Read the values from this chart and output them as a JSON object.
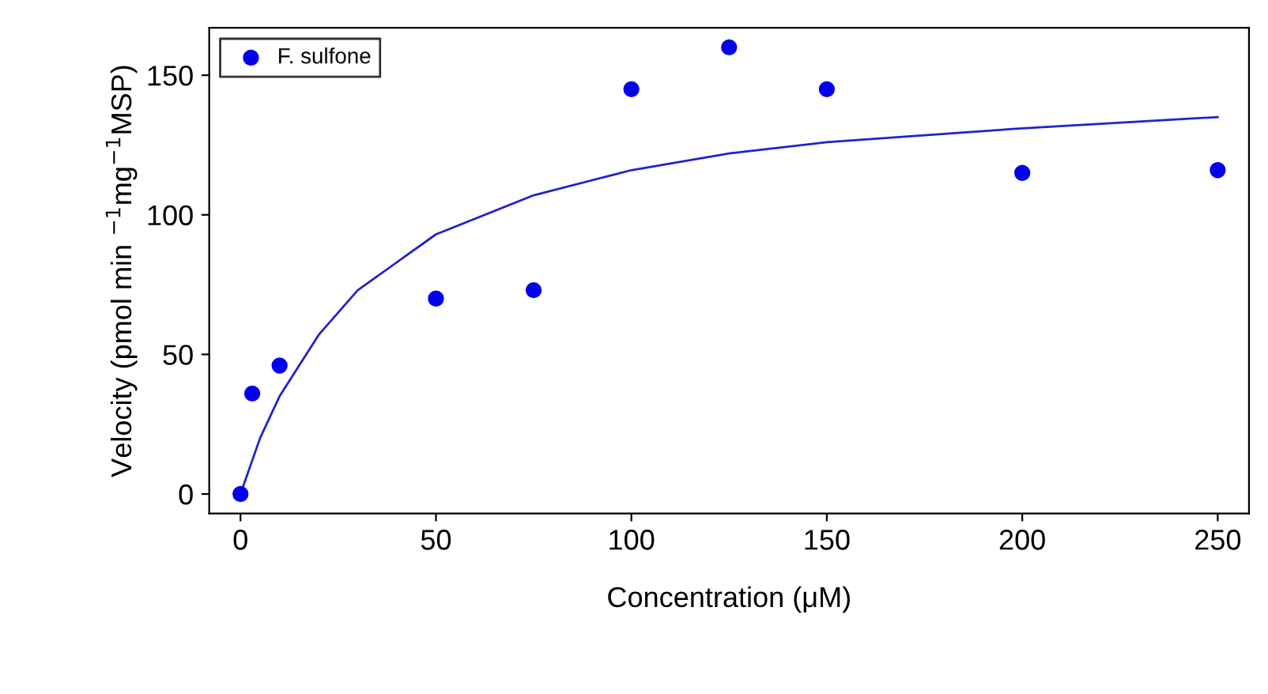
{
  "chart_data": {
    "type": "scatter",
    "xlabel": "Concentration (μM)",
    "ylabel": "Velocity (pmol min $^{−1}$mg$^{−1}$MSP)",
    "series": [
      {
        "name": "F. sulfone",
        "color": "#0000ee",
        "marker": "circle",
        "x": [
          0,
          3,
          10,
          50,
          75,
          100,
          125,
          150,
          200,
          250
        ],
        "values": [
          0,
          36,
          46,
          70,
          73,
          145,
          160,
          145,
          115,
          116
        ]
      },
      {
        "type": "line",
        "color": "#2222cc",
        "line_style": "solid",
        "x": [
          0,
          2,
          5,
          10,
          20,
          30,
          50,
          75,
          100,
          125,
          150,
          200,
          250
        ],
        "values": [
          0,
          8,
          20,
          35,
          57,
          73,
          93,
          107,
          116,
          122,
          126,
          131,
          135
        ]
      }
    ],
    "xlim": [
      -8,
      258
    ],
    "ylim": [
      -7,
      167
    ],
    "xticks": [
      0,
      50,
      100,
      150,
      200,
      250
    ],
    "yticks": [
      0,
      50,
      100,
      150
    ],
    "grid": false,
    "legend": "top left"
  }
}
